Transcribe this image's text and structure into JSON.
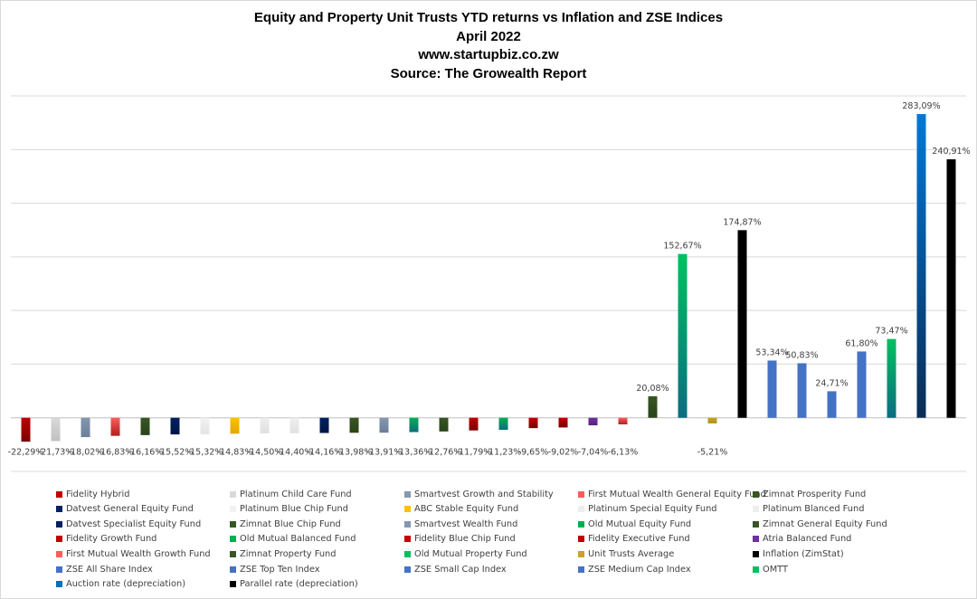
{
  "title_lines": [
    "Equity and Property Unit Trusts YTD returns vs Inflation and ZSE Indices",
    "April 2022",
    "www.startupbiz.co.zw",
    "Source: The Growealth Report"
  ],
  "chart_data": {
    "type": "bar",
    "title": "Equity and Property Unit Trusts YTD returns vs Inflation and ZSE Indices",
    "subtitle": "April 2022",
    "xlabel": "",
    "ylabel": "",
    "ylim": [
      -50,
      300
    ],
    "grid": true,
    "legend_position": "bottom",
    "unit": "%",
    "categories": [
      "Fidelity Hybrid",
      "Platinum Child Care Fund",
      "Smartvest Growth and Stability",
      "First Mutual Wealth General Equity Fund",
      "Zimnat Prosperity Fund",
      "Datvest General Equity Fund",
      "Platinum Blue Chip Fund",
      "ABC Stable Equity Fund",
      "Platinum Special Equity Fund",
      "Platinum Blanced Fund",
      "Datvest Specialist Equity Fund",
      "Zimnat Blue Chip Fund",
      "Smartvest Wealth Fund",
      "Old Mutual Equity Fund",
      "Zimnat General Equity Fund",
      "Fidelity Growth Fund",
      "Old Mutual Balanced Fund",
      "Fidelity Blue Chip Fund",
      "Fidelity Executive Fund",
      "Atria Balanced Fund",
      "First Mutual Wealth Growth Fund",
      "Zimnat Property Fund",
      "Old Mutual Property Fund",
      "Unit Trusts Average",
      "Inflation (ZimStat)",
      "ZSE All Share Index",
      "ZSE Top Ten Index",
      "ZSE Small Cap Index",
      "ZSE Medium Cap Index",
      "OMTT",
      "Auction rate (depreciation)",
      "Parallel rate (depreciation)"
    ],
    "values": [
      -22.29,
      -21.73,
      -18.02,
      -16.83,
      -16.16,
      -15.52,
      -15.32,
      -14.83,
      -14.5,
      -14.4,
      -14.16,
      -13.98,
      -13.91,
      -13.36,
      -12.76,
      -11.79,
      -11.23,
      -9.65,
      -9.02,
      -7.04,
      -6.13,
      20.08,
      152.67,
      -5.21,
      174.87,
      53.34,
      50.83,
      24.71,
      61.8,
      73.47,
      283.09,
      240.91
    ],
    "data_labels": [
      "-22,29%",
      "-21,73%",
      "-18,02%",
      "-16,83%",
      "-16,16%",
      "-15,52%",
      "-15,32%",
      "-14,83%",
      "-14,50%",
      "-14,40%",
      "-14,16%",
      "-13,98%",
      "-13,91%",
      "-13,36%",
      "-12,76%",
      "-11,79%",
      "-11,23%",
      "-9,65%",
      "-9,02%",
      "-7,04%",
      "-6,13%",
      "20,08%",
      "152,67%",
      "-5,21%",
      "174,87%",
      "53,34%",
      "50,83%",
      "24,71%",
      "61,80%",
      "73,47%",
      "283,09%",
      "240,91%"
    ],
    "colors": [
      [
        "#c00000",
        "#7a0000"
      ],
      [
        "#d9d9d9",
        "#c0c0c0"
      ],
      [
        "#8497b0",
        "#6b7f99"
      ],
      [
        "#ff5b5b",
        "#b02020"
      ],
      [
        "#375623",
        "#2a431b"
      ],
      [
        "#002060",
        "#001545"
      ],
      [
        "#f2f2f2",
        "#e4e4e4"
      ],
      [
        "#ffc000",
        "#e0a800"
      ],
      [
        "#ededed",
        "#e0e0e0"
      ],
      [
        "#eeeeee",
        "#e2e2e2"
      ],
      [
        "#002060",
        "#001545"
      ],
      [
        "#375623",
        "#2a431b"
      ],
      [
        "#8497b0",
        "#6b7f99"
      ],
      [
        "#00b050",
        "#0b6e7e"
      ],
      [
        "#375623",
        "#2a431b"
      ],
      [
        "#c00000",
        "#7a0000"
      ],
      [
        "#00b050",
        "#0b6e7e"
      ],
      [
        "#c00000",
        "#7a0000"
      ],
      [
        "#c00000",
        "#7a0000"
      ],
      [
        "#7030a0",
        "#5a2080"
      ],
      [
        "#ff5b5b",
        "#b02020"
      ],
      [
        "#375623",
        "#2a431b"
      ],
      [
        "#00c060",
        "#0a6e80"
      ],
      [
        "#c9a227",
        "#b08d1a"
      ],
      [
        "#000000",
        "#000000"
      ],
      [
        "#4472c4",
        "#4472c4"
      ],
      [
        "#4472c4",
        "#4472c4"
      ],
      [
        "#4472c4",
        "#4472c4"
      ],
      [
        "#4472c4",
        "#4472c4"
      ],
      [
        "#00c060",
        "#0a6e80"
      ],
      [
        "#0078d7",
        "#0b2d55"
      ],
      [
        "#000000",
        "#000000"
      ]
    ],
    "legend_colors": [
      "#c00000",
      "#d9d9d9",
      "#8497b0",
      "#ff5b5b",
      "#375623",
      "#002060",
      "#f2f2f2",
      "#ffc000",
      "#ededed",
      "#eeeeee",
      "#002060",
      "#375623",
      "#8497b0",
      "#00b050",
      "#375623",
      "#c00000",
      "#00b050",
      "#c00000",
      "#c00000",
      "#7030a0",
      "#ff5b5b",
      "#375623",
      "#00c060",
      "#c9a227",
      "#000000",
      "#4472c4",
      "#4472c4",
      "#4472c4",
      "#4472c4",
      "#00c060",
      "#0070c0",
      "#000000"
    ]
  }
}
